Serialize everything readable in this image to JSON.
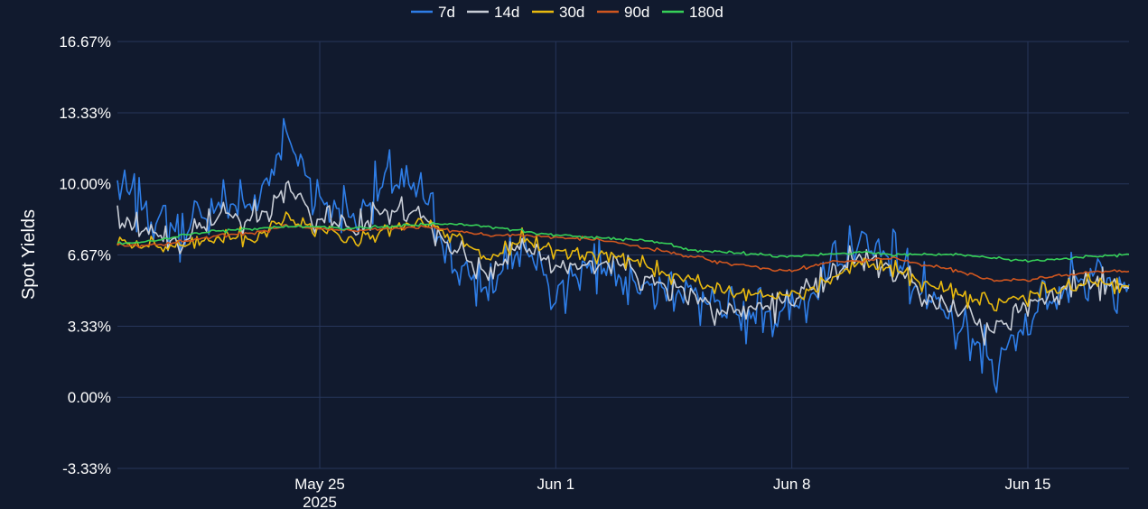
{
  "chart_data": {
    "type": "line",
    "ylabel": "Spot Yields",
    "y_ticks": [
      "16.67%",
      "13.33%",
      "10.00%",
      "6.67%",
      "3.33%",
      "0.00%",
      "-3.33%"
    ],
    "y_tick_values": [
      16.67,
      13.33,
      10.0,
      6.67,
      3.33,
      0.0,
      -3.33
    ],
    "ylim": [
      -3.33,
      16.67
    ],
    "x_range": [
      "2025-05-19",
      "2025-06-18"
    ],
    "x_ticks": [
      {
        "date": "2025-05-25",
        "label": "May 25",
        "sublabel": "2025"
      },
      {
        "date": "2025-06-01",
        "label": "Jun 1",
        "sublabel": ""
      },
      {
        "date": "2025-06-08",
        "label": "Jun 8",
        "sublabel": ""
      },
      {
        "date": "2025-06-15",
        "label": "Jun 15",
        "sublabel": ""
      }
    ],
    "grid": true,
    "legend_position": "top-center",
    "series": [
      {
        "name": "7d",
        "color": "#2e7de6",
        "dates": [
          "2025-05-19",
          "2025-05-20",
          "2025-05-21",
          "2025-05-22",
          "2025-05-23",
          "2025-05-24",
          "2025-05-25",
          "2025-05-26",
          "2025-05-27",
          "2025-05-28",
          "2025-05-29",
          "2025-05-30",
          "2025-05-31",
          "2025-06-01",
          "2025-06-02",
          "2025-06-03",
          "2025-06-04",
          "2025-06-05",
          "2025-06-06",
          "2025-06-07",
          "2025-06-08",
          "2025-06-09",
          "2025-06-10",
          "2025-06-11",
          "2025-06-12",
          "2025-06-13",
          "2025-06-14",
          "2025-06-15",
          "2025-06-16",
          "2025-06-17",
          "2025-06-18"
        ],
        "values": [
          10.0,
          8.6,
          7.6,
          9.1,
          9.0,
          12.2,
          9.3,
          8.4,
          10.1,
          9.6,
          6.0,
          5.1,
          7.0,
          5.1,
          6.3,
          5.7,
          5.1,
          5.0,
          3.7,
          4.0,
          4.1,
          5.5,
          7.0,
          6.6,
          4.6,
          3.1,
          1.6,
          3.6,
          5.0,
          5.9,
          5.3
        ]
      },
      {
        "name": "14d",
        "color": "#c8cdd6",
        "dates": [
          "2025-05-19",
          "2025-05-20",
          "2025-05-21",
          "2025-05-22",
          "2025-05-23",
          "2025-05-24",
          "2025-05-25",
          "2025-05-26",
          "2025-05-27",
          "2025-05-28",
          "2025-05-29",
          "2025-05-30",
          "2025-05-31",
          "2025-06-01",
          "2025-06-02",
          "2025-06-03",
          "2025-06-04",
          "2025-06-05",
          "2025-06-06",
          "2025-06-07",
          "2025-06-08",
          "2025-06-09",
          "2025-06-10",
          "2025-06-11",
          "2025-06-12",
          "2025-06-13",
          "2025-06-14",
          "2025-06-15",
          "2025-06-16",
          "2025-06-17",
          "2025-06-18"
        ],
        "values": [
          8.6,
          7.6,
          7.3,
          8.5,
          8.3,
          9.8,
          8.4,
          7.8,
          8.8,
          8.6,
          6.9,
          5.7,
          7.2,
          6.1,
          6.4,
          6.2,
          5.4,
          5.0,
          4.0,
          4.2,
          4.5,
          5.4,
          6.6,
          6.2,
          4.8,
          3.9,
          3.0,
          4.4,
          5.2,
          5.3,
          5.1
        ]
      },
      {
        "name": "30d",
        "color": "#e8b90f",
        "dates": [
          "2025-05-19",
          "2025-05-20",
          "2025-05-21",
          "2025-05-22",
          "2025-05-23",
          "2025-05-24",
          "2025-05-25",
          "2025-05-26",
          "2025-05-27",
          "2025-05-28",
          "2025-05-29",
          "2025-05-30",
          "2025-05-31",
          "2025-06-01",
          "2025-06-02",
          "2025-06-03",
          "2025-06-04",
          "2025-06-05",
          "2025-06-06",
          "2025-06-07",
          "2025-06-08",
          "2025-06-09",
          "2025-06-10",
          "2025-06-11",
          "2025-06-12",
          "2025-06-13",
          "2025-06-14",
          "2025-06-15",
          "2025-06-16",
          "2025-06-17",
          "2025-06-18"
        ],
        "values": [
          7.3,
          7.0,
          7.1,
          7.5,
          7.4,
          8.4,
          7.9,
          7.5,
          7.9,
          8.1,
          7.6,
          6.4,
          7.4,
          6.9,
          6.8,
          6.6,
          5.9,
          5.6,
          4.9,
          4.8,
          4.8,
          5.4,
          6.3,
          6.0,
          5.3,
          4.8,
          4.3,
          4.8,
          5.1,
          5.4,
          5.2
        ]
      },
      {
        "name": "90d",
        "color": "#d0561f",
        "dates": [
          "2025-05-19",
          "2025-05-20",
          "2025-05-21",
          "2025-05-22",
          "2025-05-23",
          "2025-05-24",
          "2025-05-25",
          "2025-05-26",
          "2025-05-27",
          "2025-05-28",
          "2025-05-29",
          "2025-05-30",
          "2025-05-31",
          "2025-06-01",
          "2025-06-02",
          "2025-06-03",
          "2025-06-04",
          "2025-06-05",
          "2025-06-06",
          "2025-06-07",
          "2025-06-08",
          "2025-06-09",
          "2025-06-10",
          "2025-06-11",
          "2025-06-12",
          "2025-06-13",
          "2025-06-14",
          "2025-06-15",
          "2025-06-16",
          "2025-06-17",
          "2025-06-18"
        ],
        "values": [
          7.1,
          7.1,
          7.3,
          7.6,
          7.7,
          8.0,
          7.9,
          7.8,
          7.9,
          8.0,
          7.8,
          7.6,
          7.6,
          7.5,
          7.4,
          7.2,
          6.9,
          6.6,
          6.3,
          6.1,
          5.9,
          6.3,
          6.4,
          6.5,
          6.2,
          5.9,
          5.5,
          5.5,
          5.7,
          5.9,
          5.9
        ]
      },
      {
        "name": "180d",
        "color": "#36d058",
        "dates": [
          "2025-05-19",
          "2025-05-20",
          "2025-05-21",
          "2025-05-22",
          "2025-05-23",
          "2025-05-24",
          "2025-05-25",
          "2025-05-26",
          "2025-05-27",
          "2025-05-28",
          "2025-05-29",
          "2025-05-30",
          "2025-05-31",
          "2025-06-01",
          "2025-06-02",
          "2025-06-03",
          "2025-06-04",
          "2025-06-05",
          "2025-06-06",
          "2025-06-07",
          "2025-06-08",
          "2025-06-09",
          "2025-06-10",
          "2025-06-11",
          "2025-06-12",
          "2025-06-13",
          "2025-06-14",
          "2025-06-15",
          "2025-06-16",
          "2025-06-17",
          "2025-06-18"
        ],
        "values": [
          7.2,
          7.3,
          7.6,
          7.8,
          7.9,
          8.0,
          8.0,
          7.9,
          8.0,
          8.1,
          8.1,
          8.0,
          7.8,
          7.6,
          7.5,
          7.4,
          7.3,
          6.9,
          6.8,
          6.7,
          6.6,
          6.7,
          6.8,
          6.7,
          6.7,
          6.7,
          6.5,
          6.4,
          6.5,
          6.6,
          6.7
        ]
      }
    ]
  }
}
